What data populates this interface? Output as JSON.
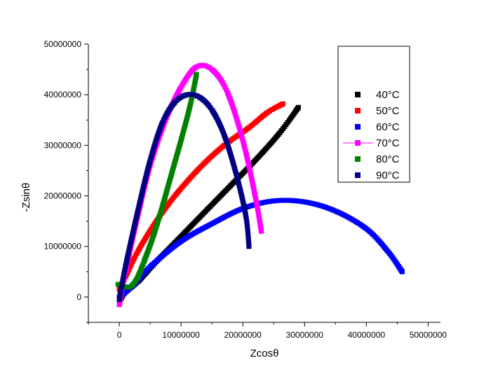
{
  "chart_data": {
    "type": "scatter",
    "xlabel": "Zcosθ",
    "ylabel": "-Zsinθ",
    "xlim": [
      -5000000,
      52000000
    ],
    "ylim": [
      -5000000,
      50000000
    ],
    "x_ticks": [
      0,
      10000000,
      20000000,
      30000000,
      40000000,
      50000000
    ],
    "y_ticks": [
      0,
      10000000,
      20000000,
      30000000,
      40000000,
      50000000
    ],
    "x_tick_labels": [
      "0",
      "10000000",
      "20000000",
      "30000000",
      "40000000",
      "50000000"
    ],
    "y_tick_labels": [
      "0",
      "10000000",
      "20000000",
      "30000000",
      "40000000",
      "50000000"
    ],
    "grid": false,
    "legend_position": "top-right",
    "series": [
      {
        "name": "40°C",
        "color": "#000000",
        "marker": "square",
        "points": [
          [
            0,
            -1000000
          ],
          [
            1000000,
            1000000
          ],
          [
            3000000,
            3000000
          ],
          [
            6000000,
            7000000
          ],
          [
            10000000,
            12000000
          ],
          [
            14000000,
            17000000
          ],
          [
            18000000,
            22000000
          ],
          [
            22000000,
            27000000
          ],
          [
            26000000,
            32500000
          ],
          [
            29000000,
            37500000
          ]
        ]
      },
      {
        "name": "50°C",
        "color": "#ff0000",
        "marker": "square",
        "points": [
          [
            0,
            1500000
          ],
          [
            1000000,
            4000000
          ],
          [
            3000000,
            9000000
          ],
          [
            6000000,
            15000000
          ],
          [
            9000000,
            20000000
          ],
          [
            13000000,
            25500000
          ],
          [
            17000000,
            30000000
          ],
          [
            21000000,
            33500000
          ],
          [
            24000000,
            36500000
          ],
          [
            26500000,
            38200000
          ]
        ]
      },
      {
        "name": "60°C",
        "color": "#0000ff",
        "marker": "square",
        "points": [
          [
            0,
            0
          ],
          [
            2000000,
            2000000
          ],
          [
            5000000,
            6000000
          ],
          [
            10000000,
            11000000
          ],
          [
            15000000,
            14500000
          ],
          [
            20000000,
            17500000
          ],
          [
            25000000,
            19000000
          ],
          [
            30000000,
            18800000
          ],
          [
            35000000,
            17000000
          ],
          [
            40000000,
            13500000
          ],
          [
            43500000,
            9000000
          ],
          [
            45800000,
            5000000
          ]
        ]
      },
      {
        "name": "70°C",
        "color": "#ff00ff",
        "marker": "square",
        "points": [
          [
            0,
            -1500000
          ],
          [
            1000000,
            5000000
          ],
          [
            3000000,
            16000000
          ],
          [
            5000000,
            26000000
          ],
          [
            7500000,
            35000000
          ],
          [
            10000000,
            41500000
          ],
          [
            12500000,
            45500000
          ],
          [
            15000000,
            45000000
          ],
          [
            17500000,
            40500000
          ],
          [
            20000000,
            31000000
          ],
          [
            22000000,
            20000000
          ],
          [
            23000000,
            13000000
          ]
        ]
      },
      {
        "name": "80°C",
        "color": "#008000",
        "marker": "square",
        "points": [
          [
            -200000,
            2500000
          ],
          [
            1000000,
            2000000
          ],
          [
            2000000,
            2200000
          ],
          [
            3000000,
            4000000
          ],
          [
            4000000,
            7000000
          ],
          [
            5500000,
            12000000
          ],
          [
            7000000,
            18000000
          ],
          [
            8500000,
            24500000
          ],
          [
            10000000,
            31000000
          ],
          [
            11500000,
            38000000
          ],
          [
            12500000,
            44000000
          ]
        ]
      },
      {
        "name": "90°C",
        "color": "#000080",
        "marker": "square",
        "points": [
          [
            0,
            -500000
          ],
          [
            1000000,
            6000000
          ],
          [
            3000000,
            17000000
          ],
          [
            5000000,
            27000000
          ],
          [
            7000000,
            34500000
          ],
          [
            9000000,
            38500000
          ],
          [
            11000000,
            40000000
          ],
          [
            13000000,
            39500000
          ],
          [
            15000000,
            37000000
          ],
          [
            17000000,
            32000000
          ],
          [
            19000000,
            24000000
          ],
          [
            20500000,
            16000000
          ],
          [
            21000000,
            10000000
          ]
        ]
      }
    ]
  }
}
